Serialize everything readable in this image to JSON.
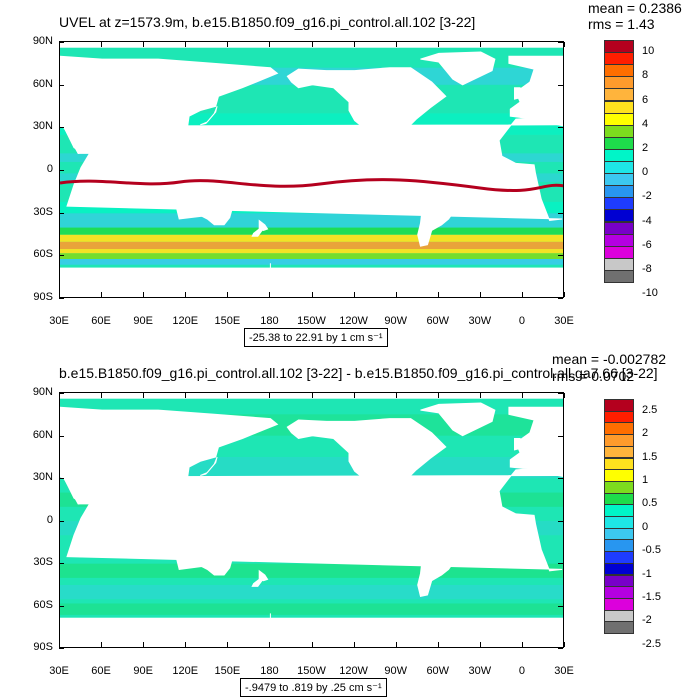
{
  "top": {
    "title": "UVEL at z=1573.9m, b.e15.B1850.f09_g16.pi_control.all.102 [3-22]",
    "mean": "mean = 0.2386",
    "rms": "rms = 1.43",
    "lat_labels": [
      "90N",
      "60N",
      "30N",
      "0",
      "30S",
      "60S",
      "90S"
    ],
    "lon_labels": [
      "30E",
      "60E",
      "90E",
      "120E",
      "150E",
      "180",
      "150W",
      "120W",
      "90W",
      "60W",
      "30W",
      "0",
      "30E"
    ],
    "colorbar_labels": [
      "10",
      "8",
      "6",
      "4",
      "2",
      "0",
      "-2",
      "-4",
      "-6",
      "-8",
      "-10"
    ],
    "range": "-25.38 to 22.91 by 1 cm s⁻¹"
  },
  "bottom": {
    "title": "b.e15.B1850.f09_g16.pi_control.all.102 [3-22] - b.e15.B1850.f09_g16.pi_control.all.ga7.66 [3-22]",
    "mean": "mean = -0.002782",
    "rms": "rms = 0.0702",
    "lat_labels": [
      "90N",
      "60N",
      "30N",
      "0",
      "30S",
      "60S",
      "90S"
    ],
    "lon_labels": [
      "30E",
      "60E",
      "90E",
      "120E",
      "150E",
      "180",
      "150W",
      "120W",
      "90W",
      "60W",
      "30W",
      "0",
      "30E"
    ],
    "colorbar_labels": [
      "2.5",
      "2",
      "1.5",
      "1",
      "0.5",
      "0",
      "-0.5",
      "-1",
      "-1.5",
      "-2",
      "-2.5"
    ],
    "range": "-.9479 to .819 by .25 cm s⁻¹"
  },
  "colors": {
    "colorbar": [
      "#b4001e",
      "#ff1e00",
      "#ff6e00",
      "#ff9b2c",
      "#ffb43c",
      "#ffe11e",
      "#ffff00",
      "#7ddc1e",
      "#1edc4b",
      "#00f5c8",
      "#1ee6e6",
      "#3cc8f0",
      "#2896f0",
      "#1e3cff",
      "#0000d2",
      "#7800c8",
      "#b400e1",
      "#dc00dc",
      "#c8c8c8",
      "#707070"
    ],
    "ocean_base": "#1ee6b4",
    "land": "#ffffff"
  }
}
